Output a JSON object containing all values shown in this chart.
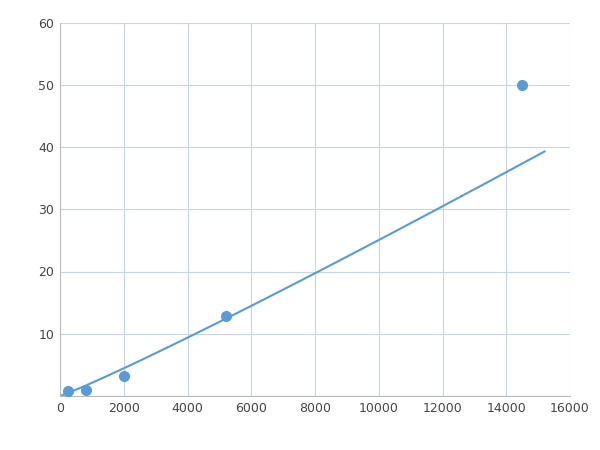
{
  "x_data": [
    250,
    800,
    2000,
    5200,
    14500
  ],
  "y_data": [
    0.8,
    1.0,
    3.2,
    12.8,
    50.0
  ],
  "line_color": "#5b9bd5",
  "marker_color": "#5b9bd5",
  "marker_size": 7,
  "xlim": [
    0,
    16000
  ],
  "ylim": [
    0,
    60
  ],
  "xticks": [
    0,
    2000,
    4000,
    6000,
    8000,
    10000,
    12000,
    14000,
    16000
  ],
  "yticks": [
    0,
    10,
    20,
    30,
    40,
    50,
    60
  ],
  "grid_color": "#c8d4e3",
  "background_color": "#ffffff",
  "line_width": 1.5,
  "figsize": [
    6.0,
    4.5
  ],
  "dpi": 100
}
